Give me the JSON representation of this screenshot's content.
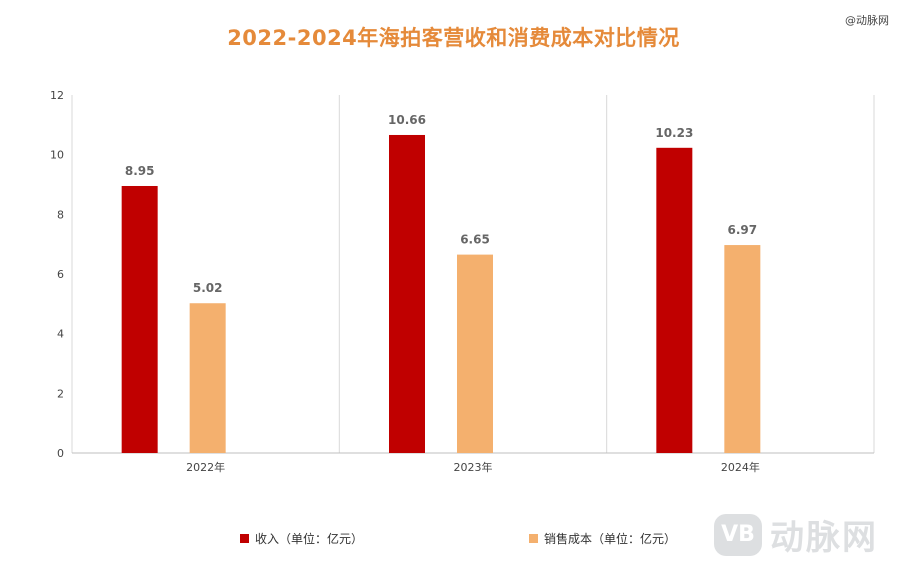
{
  "credit": "@动脉网",
  "watermark": {
    "logo": "VB",
    "text": "动脉网"
  },
  "colors": {
    "revenue": "#c00000",
    "cost": "#f4b06e",
    "title": "#e58a3a"
  },
  "chart_data": {
    "type": "bar",
    "title": "2022-2024年海拍客营收和消费成本对比情况",
    "categories": [
      "2022年",
      "2023年",
      "2024年"
    ],
    "series": [
      {
        "name": "收入（单位：亿元）",
        "values": [
          8.95,
          10.66,
          10.23
        ],
        "labels": [
          "8.95",
          "10.66",
          "10.23"
        ]
      },
      {
        "name": "销售成本（单位：亿元）",
        "values": [
          5.02,
          6.65,
          6.97
        ],
        "labels": [
          "5.02",
          "6.65",
          "6.97"
        ]
      }
    ],
    "ylim": [
      0,
      12
    ],
    "yticks": [
      "0",
      "2",
      "4",
      "6",
      "8",
      "10",
      "12"
    ],
    "grid": "vertical-category-separators",
    "legend": "bottom"
  }
}
